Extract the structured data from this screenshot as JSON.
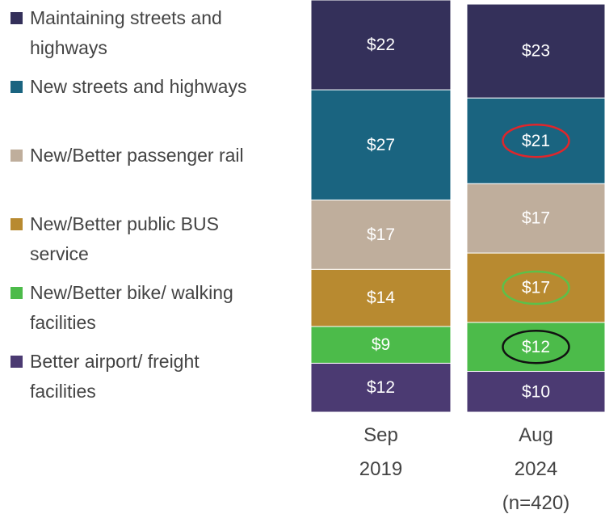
{
  "chart_data": {
    "type": "stacked_bar",
    "categories": [
      "Sep\n2019",
      "Aug\n2024\n(n=420)"
    ],
    "ylim": [
      0,
      101
    ],
    "series": [
      {
        "name": "Maintaining streets and highways",
        "color": "#34305a",
        "values": [
          22,
          23
        ],
        "value_labels": [
          "$22",
          "$23"
        ],
        "circled": [
          null,
          null
        ]
      },
      {
        "name": "New streets and highways",
        "color": "#1a6480",
        "values": [
          27,
          21
        ],
        "value_labels": [
          "$27",
          "$21"
        ],
        "circled": [
          null,
          "#e0262b"
        ]
      },
      {
        "name": "New/Better passenger rail",
        "color": "#bfae9c",
        "values": [
          17,
          17
        ],
        "value_labels": [
          "$17",
          "$17"
        ],
        "circled": [
          null,
          null
        ]
      },
      {
        "name": "New/Better public BUS service",
        "color": "#b88a30",
        "values": [
          14,
          17
        ],
        "value_labels": [
          "$14",
          "$17"
        ],
        "circled": [
          null,
          "#5cc04a"
        ]
      },
      {
        "name": "New/Better bike/ walking facilities",
        "color": "#4cbb4a",
        "values": [
          9,
          12
        ],
        "value_labels": [
          "$9",
          "$12"
        ],
        "circled": [
          null,
          "#111111"
        ]
      },
      {
        "name": "Better airport/ freight facilities",
        "color": "#4b3a72",
        "values": [
          12,
          10
        ],
        "value_labels": [
          "$12",
          "$10"
        ],
        "circled": [
          null,
          null
        ]
      }
    ]
  }
}
